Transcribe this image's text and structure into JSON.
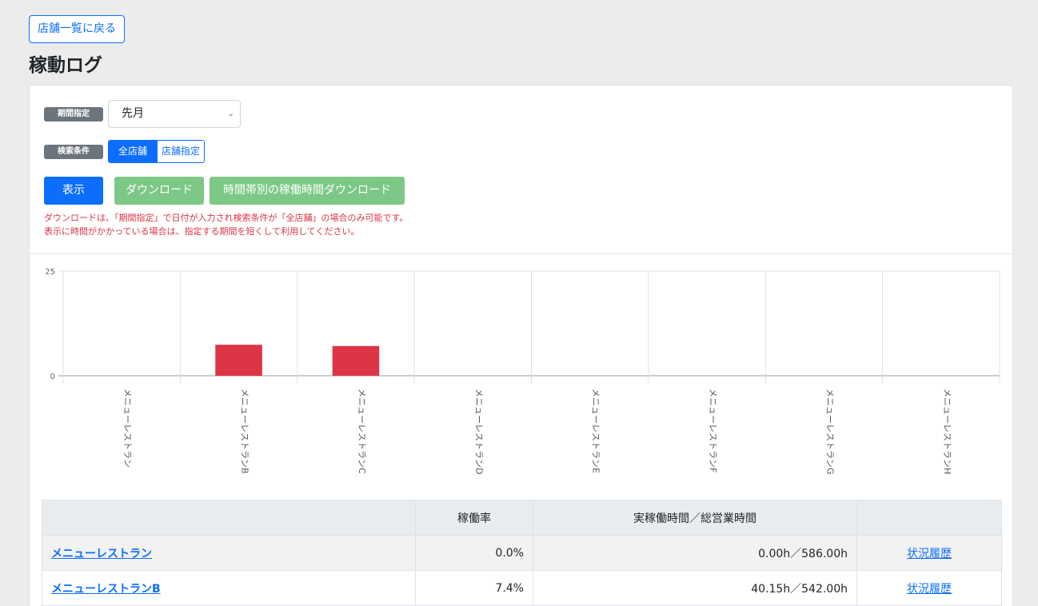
{
  "header": {
    "back_label": "店舗一覧に戻る",
    "title": "稼動ログ"
  },
  "filters": {
    "period_label": "期間指定",
    "period_value": "先月",
    "condition_label": "検索条件",
    "condition_options": [
      "全店舗",
      "店舗指定"
    ],
    "condition_selected": "全店舗"
  },
  "actions": {
    "show_label": "表示",
    "download_label": "ダウンロード",
    "hourly_download_label": "時間帯別の稼働時間ダウンロード"
  },
  "notes": [
    "ダウンロードは、「期間指定」で日付が入力され検索条件が「全店舗」の場合のみ可能です。",
    "表示に時間がかかっている場合は、指定する期間を短くして利用してください。"
  ],
  "chart_data": {
    "type": "bar",
    "categories": [
      "メニューレストラン",
      "メニューレストランB",
      "メニューレストランC",
      "メニューレストランD",
      "メニューレストランE",
      "メニューレストランF",
      "メニューレストランG",
      "メニューレストランH"
    ],
    "values": [
      0,
      7.4,
      7.1,
      0,
      0,
      0,
      0,
      0
    ],
    "ylim": [
      0,
      25
    ],
    "yticks": [
      0,
      25
    ],
    "bar_color": "#dc3545",
    "grid": true
  },
  "table": {
    "headers": [
      "",
      "稼働率",
      "実稼働時間／総営業時間",
      ""
    ],
    "rows": [
      {
        "name": "メニューレストラン",
        "rate": "0.0%",
        "hours": "0.00h／586.00h",
        "history": "状況履歴"
      },
      {
        "name": "メニューレストランB",
        "rate": "7.4%",
        "hours": "40.15h／542.00h",
        "history": "状況履歴"
      }
    ]
  }
}
